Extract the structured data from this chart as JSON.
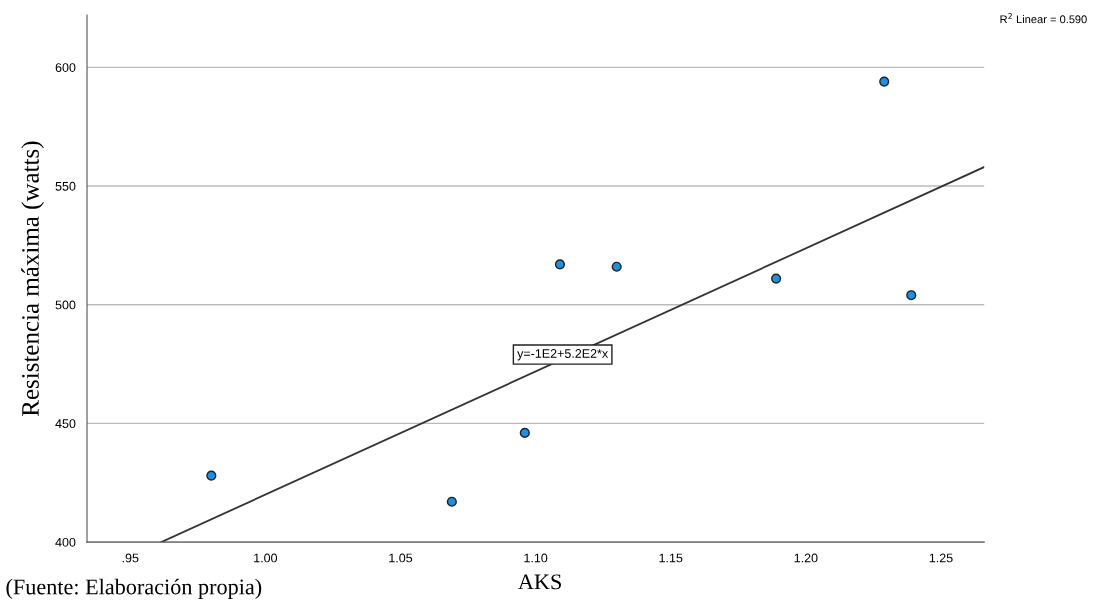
{
  "chart_data": {
    "type": "scatter",
    "xlabel": "AKS",
    "ylabel": "Resistencia máxima (watts)",
    "x": [
      0.98,
      1.069,
      1.096,
      1.109,
      1.13,
      1.189,
      1.229,
      1.239
    ],
    "series": [
      {
        "color": "#1f8fe0",
        "marker": "circle",
        "values": [
          428,
          417,
          446,
          517,
          516,
          511,
          594,
          504
        ]
      },
      {
        "type": "line",
        "color": "#333333",
        "x": [
          0.9615,
          1.266
        ],
        "values": [
          400,
          558
        ]
      }
    ],
    "xlim": [
      0.934,
      1.266
    ],
    "ylim": [
      400,
      622
    ],
    "xticks": [
      {
        "value": 0.95,
        "label": ".95"
      },
      {
        "value": 1.0,
        "label": "1.00"
      },
      {
        "value": 1.05,
        "label": "1.05"
      },
      {
        "value": 1.1,
        "label": "1.10"
      },
      {
        "value": 1.15,
        "label": "1.15"
      },
      {
        "value": 1.2,
        "label": "1.20"
      },
      {
        "value": 1.25,
        "label": "1.25"
      }
    ],
    "yticks": [
      400,
      450,
      500,
      550,
      600
    ],
    "grid": "y",
    "annotations": [
      {
        "text": "y=-1E2+5.2E2*x",
        "x": 1.11,
        "y": 479
      },
      "R$^{2}$ Linear = 0.590",
      "(Fuente: Elaboración propia)"
    ]
  }
}
